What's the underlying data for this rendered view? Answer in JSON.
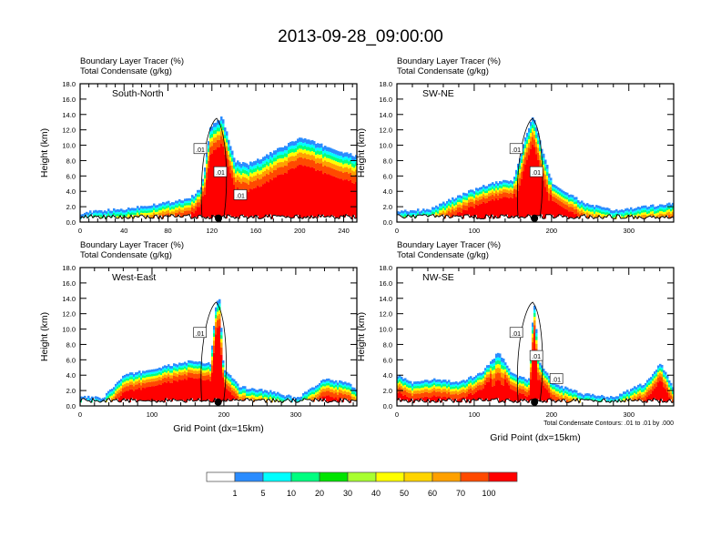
{
  "title": "2013-09-28_09:00:00",
  "colors": {
    "levels": [
      "#ffffff",
      "#2a8cff",
      "#00ffff",
      "#00ff80",
      "#00e400",
      "#a8ff30",
      "#ffff00",
      "#ffd400",
      "#ffa000",
      "#ff4a00",
      "#ff0000"
    ]
  },
  "chart_data": [
    {
      "type": "heatmap",
      "panel": "top-left",
      "label": "South-North",
      "title_lines": [
        "Boundary Layer Tracer   (%)",
        "Total Condensate   (g/kg)"
      ],
      "ylabel": "Height (km)",
      "xlabel": "",
      "xlim": [
        0,
        252
      ],
      "ylim": [
        0,
        18
      ],
      "xticks": [
        0,
        40,
        80,
        120,
        160,
        200,
        240
      ],
      "yticks": [
        "0.0",
        "2.0",
        "4.0",
        "6.0",
        "8.0",
        "10.0",
        "12.0",
        "14.0",
        "16.0",
        "18.0"
      ],
      "contour_labels": [
        ".01",
        ".01",
        ".01"
      ],
      "marker_x": 126,
      "profile": {
        "x": [
          0,
          20,
          40,
          60,
          80,
          100,
          110,
          118,
          124,
          128,
          134,
          140,
          150,
          160,
          180,
          200,
          220,
          240,
          252
        ],
        "top": [
          1.2,
          1.5,
          1.7,
          2.2,
          2.6,
          3.2,
          4.5,
          12.5,
          13.0,
          13.8,
          11.0,
          8.0,
          7.5,
          8.0,
          9.5,
          11.0,
          10.0,
          9.0,
          8.5
        ]
      }
    },
    {
      "type": "heatmap",
      "panel": "top-right",
      "label": "SW-NE",
      "title_lines": [
        "Boundary Layer Tracer   (%)",
        "Total Condensate   (g/kg)"
      ],
      "ylabel": "Height (km)",
      "xlabel": "",
      "xlim": [
        0,
        358
      ],
      "ylim": [
        0,
        18
      ],
      "xticks": [
        0,
        100,
        200,
        300
      ],
      "yticks": [
        "0.0",
        "2.0",
        "4.0",
        "6.0",
        "8.0",
        "10.0",
        "12.0",
        "14.0",
        "16.0",
        "18.0"
      ],
      "contour_labels": [
        ".01",
        ".01"
      ],
      "marker_x": 178,
      "profile": {
        "x": [
          0,
          40,
          80,
          120,
          150,
          165,
          175,
          185,
          200,
          240,
          280,
          320,
          358
        ],
        "top": [
          1.5,
          1.6,
          3.5,
          5.0,
          5.5,
          11.0,
          13.8,
          10.0,
          5.0,
          2.5,
          1.5,
          2.0,
          2.5
        ]
      }
    },
    {
      "type": "heatmap",
      "panel": "bottom-left",
      "label": "West-East",
      "title_lines": [
        "Boundary Layer Tracer   (%)",
        "Total Condensate   (g/kg)"
      ],
      "ylabel": "Height (km)",
      "xlabel": "Grid Point (dx=15km)",
      "xlim": [
        0,
        385
      ],
      "ylim": [
        0,
        18
      ],
      "xticks": [
        0,
        100,
        200,
        300
      ],
      "yticks": [
        "0.0",
        "2.0",
        "4.0",
        "6.0",
        "8.0",
        "10.0",
        "12.0",
        "14.0",
        "16.0",
        "18.0"
      ],
      "contour_labels": [
        ".01"
      ],
      "marker_x": 192,
      "profile": {
        "x": [
          0,
          30,
          60,
          100,
          150,
          180,
          188,
          193,
          198,
          220,
          260,
          300,
          340,
          370,
          385
        ],
        "top": [
          1.2,
          1.0,
          4.0,
          4.8,
          5.8,
          5.5,
          13.5,
          13.8,
          5.0,
          2.5,
          2.0,
          1.0,
          3.5,
          3.0,
          2.0
        ]
      }
    },
    {
      "type": "heatmap",
      "panel": "bottom-right",
      "label": "NW-SE",
      "title_lines": [
        "Boundary Layer Tracer   (%)",
        "Total Condensate   (g/kg)"
      ],
      "ylabel": "Height (km)",
      "xlabel": "Grid Point (dx=15km)",
      "xlim": [
        0,
        358
      ],
      "ylim": [
        0,
        18
      ],
      "xticks": [
        0,
        100,
        200,
        300
      ],
      "yticks": [
        "0.0",
        "2.0",
        "4.0",
        "6.0",
        "8.0",
        "10.0",
        "12.0",
        "14.0",
        "16.0",
        "18.0"
      ],
      "contour_labels": [
        ".01",
        ".01",
        ".01"
      ],
      "marker_x": 178,
      "note": "Total Condensate Contours: .01 to .01 by .000",
      "profile": {
        "x": [
          0,
          20,
          50,
          80,
          110,
          130,
          150,
          170,
          176,
          182,
          200,
          240,
          280,
          320,
          340,
          358
        ],
        "top": [
          4.0,
          3.0,
          3.5,
          3.0,
          4.5,
          7.0,
          4.0,
          3.5,
          13.8,
          6.0,
          3.0,
          1.5,
          1.2,
          3.0,
          5.5,
          2.0
        ]
      }
    }
  ],
  "colorbar": {
    "labels": [
      "1",
      "5",
      "10",
      "20",
      "30",
      "40",
      "50",
      "60",
      "70",
      "100"
    ]
  }
}
